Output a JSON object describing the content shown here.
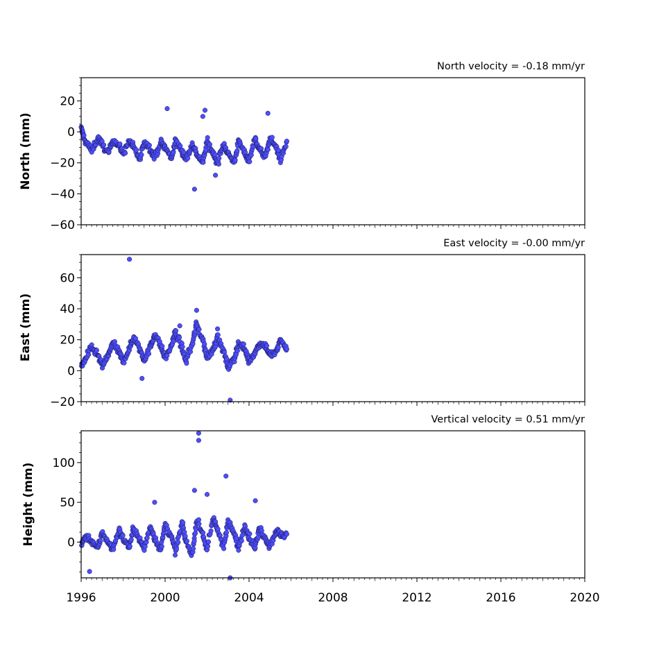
{
  "chart_data": [
    {
      "type": "scatter",
      "title": "North velocity = -0.18 mm/yr",
      "ylabel": "North (mm)",
      "xlim": [
        1996,
        2020
      ],
      "ylim": [
        -60,
        35
      ],
      "yticks": [
        20,
        0,
        -20,
        -40,
        -60
      ],
      "ytick_labels": [
        "20",
        "0",
        "−20",
        "−40",
        "−60"
      ],
      "color": "#4d4dff",
      "series": [
        {
          "x": [
            1996.0,
            1996.2,
            1996.5,
            1996.8,
            1997.0,
            1997.3,
            1997.5,
            1997.8,
            1998.0,
            1998.3,
            1998.5,
            1998.8,
            1999.0,
            1999.3,
            1999.5,
            1999.8,
            2000.0,
            2000.3,
            2000.5,
            2000.8,
            2001.0,
            2001.3,
            2001.5,
            2001.8,
            2002.0,
            2002.3,
            2002.5,
            2002.8,
            2003.0,
            2003.3,
            2003.5,
            2003.8,
            2004.0,
            2004.3,
            2004.5,
            2004.8,
            2005.0,
            2005.3,
            2005.5,
            2005.8
          ],
          "y": [
            2,
            -6,
            -12,
            -4,
            -8,
            -14,
            -5,
            -9,
            -14,
            -6,
            -10,
            -18,
            -6,
            -11,
            -16,
            -7,
            -10,
            -17,
            -6,
            -12,
            -18,
            -8,
            -14,
            -20,
            -6,
            -14,
            -20,
            -8,
            -14,
            -20,
            -6,
            -14,
            -18,
            -4,
            -12,
            -16,
            -4,
            -10,
            -18,
            -6
          ]
        }
      ],
      "outliers": {
        "x": [
          2000.1,
          2001.4,
          2001.9,
          2002.4,
          2004.9,
          2001.8
        ],
        "y": [
          15,
          -37,
          14,
          -28,
          12,
          10
        ]
      }
    },
    {
      "type": "scatter",
      "title": "East velocity = -0.00 mm/yr",
      "ylabel": "East (mm)",
      "xlim": [
        1996,
        2020
      ],
      "ylim": [
        -20,
        75
      ],
      "yticks": [
        60,
        40,
        20,
        0,
        -20
      ],
      "ytick_labels": [
        "60",
        "40",
        "20",
        "0",
        "−20"
      ],
      "color": "#4d4dff",
      "series": [
        {
          "x": [
            1996.0,
            1996.2,
            1996.5,
            1996.8,
            1997.0,
            1997.3,
            1997.5,
            1997.8,
            1998.0,
            1998.3,
            1998.5,
            1998.8,
            1999.0,
            1999.3,
            1999.5,
            1999.8,
            2000.0,
            2000.3,
            2000.5,
            2000.8,
            2001.0,
            2001.3,
            2001.5,
            2001.8,
            2002.0,
            2002.3,
            2002.5,
            2002.8,
            2003.0,
            2003.3,
            2003.5,
            2003.8,
            2004.0,
            2004.3,
            2004.5,
            2004.8,
            2005.0,
            2005.3,
            2005.5,
            2005.8
          ],
          "y": [
            2,
            8,
            15,
            10,
            3,
            10,
            18,
            12,
            6,
            14,
            22,
            14,
            7,
            15,
            24,
            16,
            8,
            16,
            25,
            15,
            6,
            18,
            30,
            20,
            8,
            14,
            22,
            12,
            2,
            8,
            18,
            14,
            6,
            12,
            18,
            16,
            10,
            12,
            20,
            14
          ]
        }
      ],
      "outliers": {
        "x": [
          1998.3,
          2001.5,
          2003.1,
          1998.9,
          2000.7,
          2002.5
        ],
        "y": [
          72,
          39,
          -19,
          -5,
          29,
          27
        ]
      }
    },
    {
      "type": "scatter",
      "title": "Vertical velocity = 0.51 mm/yr",
      "ylabel": "Height (mm)",
      "xlim": [
        1996,
        2020
      ],
      "ylim": [
        -45,
        140
      ],
      "yticks": [
        100,
        50,
        0
      ],
      "ytick_labels": [
        "100",
        "50",
        "0"
      ],
      "xticks": [
        1996,
        2000,
        2004,
        2008,
        2012,
        2016,
        2020
      ],
      "xtick_labels": [
        "1996",
        "2000",
        "2004",
        "2008",
        "2012",
        "2016",
        "2020"
      ],
      "color": "#4d4dff",
      "series": [
        {
          "x": [
            1996.0,
            1996.2,
            1996.5,
            1996.8,
            1997.0,
            1997.3,
            1997.5,
            1997.8,
            1998.0,
            1998.3,
            1998.5,
            1998.8,
            1999.0,
            1999.3,
            1999.5,
            1999.8,
            2000.0,
            2000.3,
            2000.5,
            2000.8,
            2001.0,
            2001.3,
            2001.5,
            2001.8,
            2002.0,
            2002.3,
            2002.5,
            2002.8,
            2003.0,
            2003.3,
            2003.5,
            2003.8,
            2004.0,
            2004.3,
            2004.5,
            2004.8,
            2005.0,
            2005.3,
            2005.5,
            2005.8
          ],
          "y": [
            -5,
            8,
            2,
            -8,
            12,
            0,
            -10,
            15,
            4,
            -6,
            18,
            2,
            -8,
            20,
            5,
            -10,
            22,
            6,
            -12,
            24,
            0,
            -15,
            28,
            10,
            -10,
            30,
            15,
            -5,
            25,
            10,
            -8,
            22,
            6,
            -6,
            18,
            4,
            -5,
            15,
            8,
            10
          ]
        }
      ],
      "outliers": {
        "x": [
          2001.6,
          2001.6,
          2002.9,
          2003.1,
          2001.4,
          1996.4,
          2002.0,
          2004.3,
          1999.5
        ],
        "y": [
          137,
          128,
          83,
          -45,
          65,
          -37,
          60,
          52,
          50
        ]
      }
    }
  ]
}
